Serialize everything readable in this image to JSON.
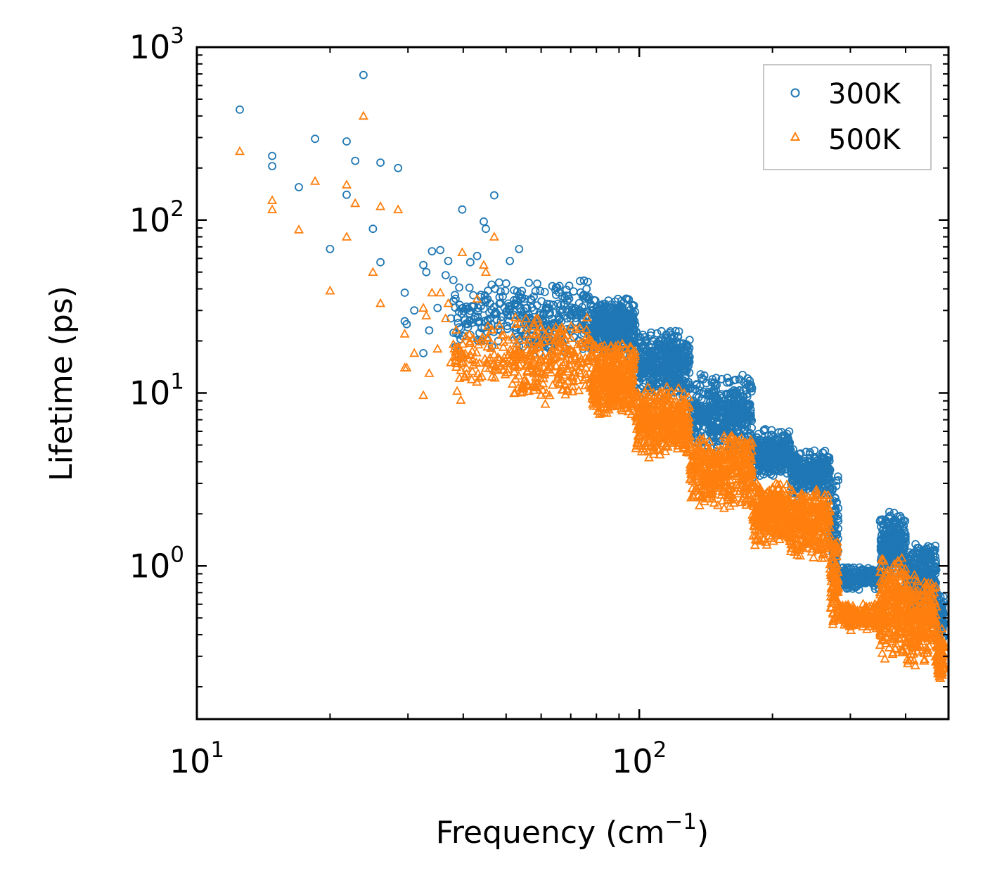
{
  "chart_data": {
    "type": "scatter",
    "title": "",
    "xlabel": "Frequency (cm",
    "xlabel_sup": "−1",
    "xlabel_tail": ")",
    "ylabel": "Lifetime (ps)",
    "xscale": "log",
    "yscale": "log",
    "xlim": [
      10,
      500
    ],
    "ylim": [
      0.13,
      1000
    ],
    "x_ticks": [
      {
        "value": 10,
        "base": "10",
        "exp": "1"
      },
      {
        "value": 100,
        "base": "10",
        "exp": "2"
      }
    ],
    "y_ticks": [
      {
        "value": 1,
        "base": "10",
        "exp": "0"
      },
      {
        "value": 10,
        "base": "10",
        "exp": "1"
      },
      {
        "value": 100,
        "base": "10",
        "exp": "2"
      },
      {
        "value": 1000,
        "base": "10",
        "exp": "3"
      }
    ],
    "legend": {
      "position": "upper right"
    },
    "series": [
      {
        "name": "300K",
        "marker": "circle-open",
        "color": "#1f77b4",
        "points": [
          [
            12.5,
            435
          ],
          [
            14.8,
            235
          ],
          [
            14.8,
            205
          ],
          [
            17.0,
            155
          ],
          [
            18.5,
            295
          ],
          [
            20.0,
            68
          ],
          [
            21.8,
            285
          ],
          [
            21.8,
            140
          ],
          [
            22.8,
            220
          ],
          [
            23.8,
            690
          ],
          [
            25.0,
            89
          ],
          [
            26.0,
            215
          ],
          [
            26.0,
            57
          ],
          [
            28.5,
            200
          ],
          [
            29.5,
            38
          ],
          [
            29.5,
            26
          ],
          [
            29.8,
            25
          ],
          [
            31.0,
            30
          ],
          [
            32.5,
            55
          ],
          [
            32.5,
            17
          ],
          [
            33.0,
            50
          ],
          [
            33.5,
            23
          ],
          [
            34.0,
            66
          ],
          [
            35.0,
            31
          ],
          [
            35.5,
            67
          ],
          [
            36.5,
            48
          ],
          [
            37.0,
            58
          ],
          [
            37.5,
            27
          ],
          [
            38.0,
            45
          ],
          [
            39.5,
            16
          ],
          [
            39.8,
            115
          ],
          [
            41.0,
            24
          ],
          [
            41.5,
            57
          ],
          [
            43.0,
            62
          ],
          [
            43.5,
            26
          ],
          [
            44.5,
            98
          ],
          [
            45.0,
            89
          ],
          [
            45.5,
            39
          ],
          [
            46.0,
            33
          ],
          [
            47.0,
            139
          ],
          [
            48.0,
            20
          ],
          [
            50.0,
            43
          ],
          [
            51.0,
            58
          ],
          [
            53.5,
            68
          ]
        ],
        "bands": [
          {
            "x0": 38,
            "x1": 52,
            "y0": 18,
            "y1": 45,
            "n": 110
          },
          {
            "x0": 52,
            "x1": 78,
            "y0": 15,
            "y1": 48,
            "n": 260
          },
          {
            "x0": 78,
            "x1": 98,
            "y0": 16,
            "y1": 36,
            "n": 420
          },
          {
            "x0": 98,
            "x1": 130,
            "y0": 9,
            "y1": 24,
            "n": 420
          },
          {
            "x0": 130,
            "x1": 180,
            "y0": 4.5,
            "y1": 13,
            "n": 440
          },
          {
            "x0": 180,
            "x1": 220,
            "y0": 3.2,
            "y1": 6.2,
            "n": 340
          },
          {
            "x0": 220,
            "x1": 270,
            "y0": 2.5,
            "y1": 4.8,
            "n": 320
          },
          {
            "x0": 270,
            "x1": 282,
            "y0": 0.8,
            "y1": 3.5,
            "n": 90
          },
          {
            "x0": 282,
            "x1": 350,
            "y0": 0.72,
            "y1": 1.0,
            "n": 200
          },
          {
            "x0": 350,
            "x1": 400,
            "y0": 0.85,
            "y1": 2.1,
            "n": 260
          },
          {
            "x0": 400,
            "x1": 470,
            "y0": 0.55,
            "y1": 1.4,
            "n": 300
          },
          {
            "x0": 470,
            "x1": 488,
            "y0": 0.35,
            "y1": 0.7,
            "n": 90
          }
        ]
      },
      {
        "name": "500K",
        "marker": "triangle-open",
        "color": "#ff7f0e",
        "points": [
          [
            12.5,
            250
          ],
          [
            14.8,
            130
          ],
          [
            14.8,
            115
          ],
          [
            17.0,
            88
          ],
          [
            18.5,
            168
          ],
          [
            20.0,
            39
          ],
          [
            21.8,
            160
          ],
          [
            21.8,
            80
          ],
          [
            22.8,
            125
          ],
          [
            23.8,
            400
          ],
          [
            25.0,
            50
          ],
          [
            26.0,
            120
          ],
          [
            26.0,
            33
          ],
          [
            28.5,
            115
          ],
          [
            29.5,
            22
          ],
          [
            29.5,
            14
          ],
          [
            29.8,
            14
          ],
          [
            31.0,
            17
          ],
          [
            32.5,
            31
          ],
          [
            32.5,
            9.7
          ],
          [
            33.0,
            28
          ],
          [
            33.5,
            13
          ],
          [
            34.0,
            38
          ],
          [
            35.0,
            18
          ],
          [
            35.5,
            38
          ],
          [
            36.5,
            27
          ],
          [
            37.0,
            33
          ],
          [
            37.5,
            15
          ],
          [
            39.5,
            9.1
          ],
          [
            39.8,
            65
          ],
          [
            43.0,
            35
          ],
          [
            44.5,
            55
          ],
          [
            45.0,
            50
          ],
          [
            47.0,
            80
          ]
        ],
        "bands": [
          {
            "x0": 38,
            "x1": 52,
            "y0": 10,
            "y1": 26,
            "n": 110
          },
          {
            "x0": 52,
            "x1": 78,
            "y0": 8.5,
            "y1": 28,
            "n": 260
          },
          {
            "x0": 78,
            "x1": 98,
            "y0": 7,
            "y1": 20,
            "n": 420
          },
          {
            "x0": 98,
            "x1": 130,
            "y0": 4.2,
            "y1": 11,
            "n": 420
          },
          {
            "x0": 130,
            "x1": 180,
            "y0": 2.1,
            "y1": 6,
            "n": 440
          },
          {
            "x0": 180,
            "x1": 220,
            "y0": 1.3,
            "y1": 3.2,
            "n": 340
          },
          {
            "x0": 220,
            "x1": 270,
            "y0": 1.1,
            "y1": 2.9,
            "n": 320
          },
          {
            "x0": 270,
            "x1": 282,
            "y0": 0.45,
            "y1": 1.5,
            "n": 90
          },
          {
            "x0": 282,
            "x1": 350,
            "y0": 0.42,
            "y1": 0.62,
            "n": 200
          },
          {
            "x0": 350,
            "x1": 400,
            "y0": 0.28,
            "y1": 1.2,
            "n": 260
          },
          {
            "x0": 400,
            "x1": 470,
            "y0": 0.26,
            "y1": 0.9,
            "n": 300
          },
          {
            "x0": 470,
            "x1": 488,
            "y0": 0.2,
            "y1": 0.45,
            "n": 90
          }
        ]
      }
    ]
  }
}
